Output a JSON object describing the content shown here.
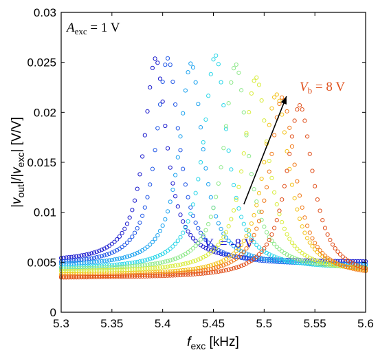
{
  "chart_data": {
    "type": "scatter",
    "title": "",
    "xlabel": {
      "var": "f",
      "sub": "exc",
      "unit": " [kHz]"
    },
    "ylabel": {
      "p1": "|",
      "v1": "v",
      "s1": "out",
      "p2": "|/|",
      "v2": "v",
      "s2": "exc",
      "p3": "| [V/V]"
    },
    "xlim": [
      5.3,
      5.6
    ],
    "ylim": [
      0,
      0.03
    ],
    "xticks": [
      5.3,
      5.35,
      5.4,
      5.45,
      5.5,
      5.55,
      5.6
    ],
    "xtick_labels": [
      "5.3",
      "5.35",
      "5.4",
      "5.45",
      "5.5",
      "5.55",
      "5.6"
    ],
    "yticks": [
      0,
      0.005,
      0.01,
      0.015,
      0.02,
      0.025,
      0.03
    ],
    "ytick_labels": [
      "0",
      "0.005",
      "0.01",
      "0.015",
      "0.02",
      "0.025",
      "0.03"
    ],
    "grid": false,
    "marker": "open-circle",
    "x_range": [
      5.3,
      5.6
    ],
    "x_step": 0.0025,
    "series": [
      {
        "color": "#1a1acd",
        "f0": 5.393,
        "peak": 0.0254,
        "gamma": 0.027,
        "base": 0.005
      },
      {
        "color": "#1f56e6",
        "f0": 5.405,
        "peak": 0.0254,
        "gamma": 0.028,
        "base": 0.0047
      },
      {
        "color": "#1ea3ef",
        "f0": 5.428,
        "peak": 0.0249,
        "gamma": 0.028,
        "base": 0.0046
      },
      {
        "color": "#2bd6e8",
        "f0": 5.452,
        "peak": 0.0257,
        "gamma": 0.029,
        "base": 0.0043
      },
      {
        "color": "#8ee88a",
        "f0": 5.472,
        "peak": 0.0248,
        "gamma": 0.029,
        "base": 0.0042
      },
      {
        "color": "#d8ec3c",
        "f0": 5.492,
        "peak": 0.0235,
        "gamma": 0.03,
        "base": 0.004
      },
      {
        "color": "#f3c21c",
        "f0": 5.512,
        "peak": 0.0218,
        "gamma": 0.031,
        "base": 0.0037
      },
      {
        "color": "#f07a1a",
        "f0": 5.518,
        "peak": 0.0215,
        "gamma": 0.031,
        "base": 0.0035
      },
      {
        "color": "#e0501c",
        "f0": 5.535,
        "peak": 0.0207,
        "gamma": 0.032,
        "base": 0.0034
      }
    ],
    "annotations": {
      "amplitude": {
        "var": "A",
        "sub": "exc",
        "rest": " = 1 V",
        "color": "#000000"
      },
      "top": {
        "var": "V",
        "sub": "b",
        "rest": " = 8 V",
        "color": "#e0501c"
      },
      "bottom": {
        "var": "V",
        "sub": "b",
        "rest": " = -8 V",
        "color": "#1a1acd"
      }
    },
    "arrow": {
      "from": [
        5.48,
        0.0108
      ],
      "to": [
        5.522,
        0.0216
      ],
      "color": "#000000"
    }
  }
}
